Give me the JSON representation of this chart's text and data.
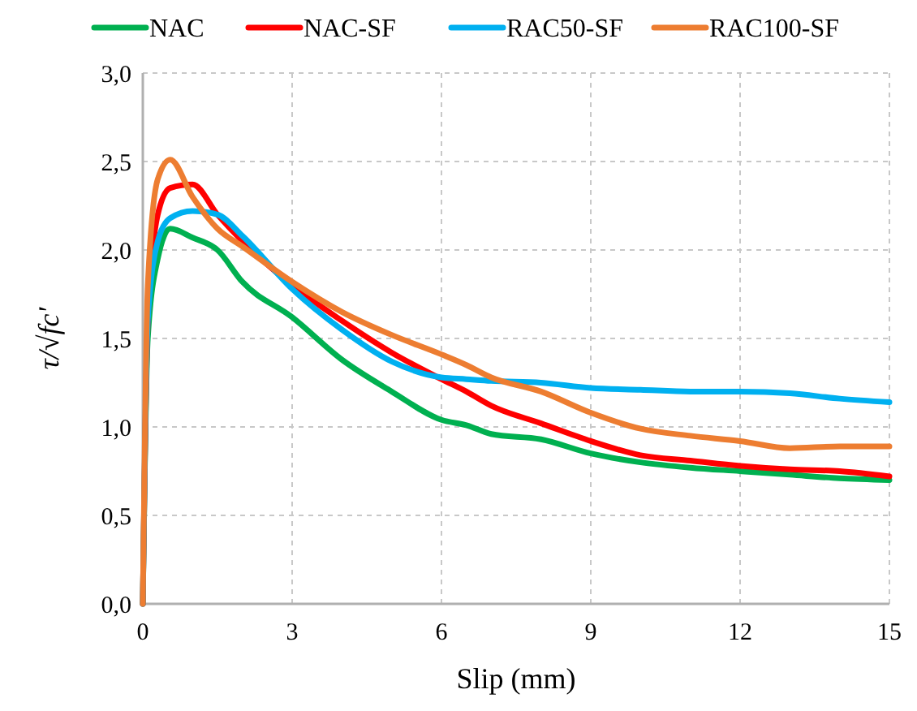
{
  "chart_data": {
    "type": "line",
    "xlabel": "Slip (mm)",
    "ylabel": "τ/√fc'",
    "legend": "top",
    "grid": true,
    "line_style": "solid",
    "marker": "none",
    "xlim": [
      0,
      15
    ],
    "xticks": [
      0,
      3,
      6,
      9,
      12,
      15
    ],
    "ylim": [
      0,
      3
    ],
    "yticks": [
      {
        "value": 0,
        "label": "0,0"
      },
      {
        "value": 0.5,
        "label": "0,5"
      },
      {
        "value": 1,
        "label": "1,0"
      },
      {
        "value": 1.5,
        "label": "1,5"
      },
      {
        "value": 2,
        "label": "2,0"
      },
      {
        "value": 2.5,
        "label": "2,5"
      },
      {
        "value": 3,
        "label": "3,0"
      }
    ],
    "x": [
      0,
      0.1,
      0.3,
      0.55,
      1,
      1.5,
      2,
      3,
      4,
      5,
      6,
      6.5,
      7,
      8,
      9,
      10,
      11,
      12,
      13,
      14,
      15
    ],
    "series": [
      {
        "name": "NAC",
        "color": "#00b050",
        "values": [
          0,
          1.5,
          1.95,
          2.12,
          2.07,
          2.0,
          1.82,
          1.62,
          1.38,
          1.2,
          1.04,
          1.01,
          0.96,
          0.93,
          0.85,
          0.8,
          0.77,
          0.75,
          0.73,
          0.71,
          0.7
        ]
      },
      {
        "name": "NAC-SF",
        "color": "#ff0000",
        "values": [
          0,
          1.6,
          2.2,
          2.35,
          2.37,
          2.2,
          2.05,
          1.8,
          1.6,
          1.42,
          1.27,
          1.2,
          1.12,
          1.02,
          0.92,
          0.84,
          0.81,
          0.78,
          0.76,
          0.75,
          0.72
        ]
      },
      {
        "name": "RAC50-SF",
        "color": "#00b0f0",
        "values": [
          0,
          1.6,
          2.05,
          2.18,
          2.22,
          2.2,
          2.08,
          1.78,
          1.55,
          1.37,
          1.28,
          1.27,
          1.26,
          1.25,
          1.22,
          1.21,
          1.2,
          1.2,
          1.19,
          1.16,
          1.14
        ]
      },
      {
        "name": "RAC100-SF",
        "color": "#ed7d31",
        "values": [
          0,
          1.8,
          2.4,
          2.51,
          2.3,
          2.12,
          2.02,
          1.82,
          1.65,
          1.52,
          1.41,
          1.35,
          1.28,
          1.2,
          1.08,
          0.99,
          0.95,
          0.92,
          0.88,
          0.89,
          0.89
        ]
      }
    ]
  }
}
